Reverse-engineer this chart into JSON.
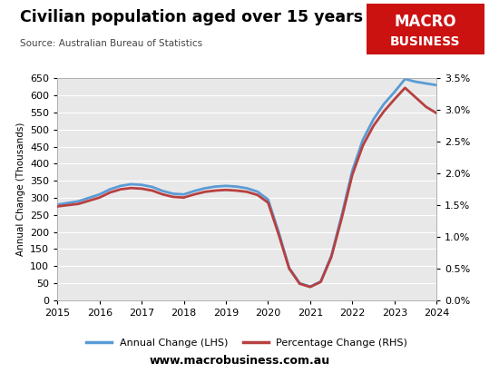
{
  "title": "Civilian population aged over 15 years",
  "source": "Source: Australian Bureau of Statistics",
  "website": "www.macrobusiness.com.au",
  "plot_bg_color": "#e8e8e8",
  "fig_bg_color": "#ffffff",
  "lhs_color": "#5b9bd5",
  "rhs_color": "#b84040",
  "lhs_label": "Annual Change (LHS)",
  "rhs_label": "Percentage Change (RHS)",
  "ylabel_lhs": "Annual Change (Thousands)",
  "ylim_lhs": [
    0,
    650
  ],
  "ylim_rhs": [
    0.0,
    3.5
  ],
  "yticks_lhs": [
    0,
    50,
    100,
    150,
    200,
    250,
    300,
    350,
    400,
    450,
    500,
    550,
    600,
    650
  ],
  "yticks_rhs": [
    0.0,
    0.5,
    1.0,
    1.5,
    2.0,
    2.5,
    3.0,
    3.5
  ],
  "x": [
    2015.0,
    2015.25,
    2015.5,
    2015.75,
    2016.0,
    2016.25,
    2016.5,
    2016.75,
    2017.0,
    2017.25,
    2017.5,
    2017.75,
    2018.0,
    2018.25,
    2018.5,
    2018.75,
    2019.0,
    2019.25,
    2019.5,
    2019.75,
    2020.0,
    2020.25,
    2020.5,
    2020.75,
    2021.0,
    2021.25,
    2021.5,
    2021.75,
    2022.0,
    2022.25,
    2022.5,
    2022.75,
    2023.0,
    2023.25,
    2023.5,
    2023.75,
    2024.0
  ],
  "annual_change": [
    280,
    285,
    290,
    300,
    310,
    325,
    335,
    340,
    338,
    332,
    320,
    312,
    310,
    320,
    328,
    333,
    335,
    333,
    328,
    318,
    295,
    200,
    95,
    50,
    40,
    55,
    130,
    250,
    380,
    470,
    530,
    575,
    610,
    648,
    640,
    635,
    630
  ],
  "pct_change": [
    1.48,
    1.5,
    1.52,
    1.57,
    1.62,
    1.7,
    1.75,
    1.77,
    1.76,
    1.73,
    1.67,
    1.63,
    1.62,
    1.67,
    1.71,
    1.73,
    1.74,
    1.73,
    1.71,
    1.66,
    1.54,
    1.04,
    0.5,
    0.26,
    0.21,
    0.29,
    0.68,
    1.3,
    1.98,
    2.44,
    2.75,
    2.98,
    3.17,
    3.35,
    3.2,
    3.05,
    2.95
  ],
  "xlim": [
    2015.0,
    2024.0
  ],
  "xticks": [
    2015,
    2016,
    2017,
    2018,
    2019,
    2020,
    2021,
    2022,
    2023,
    2024
  ],
  "logo_color": "#cc1111",
  "logo_text_line1": "MACRO",
  "logo_text_line2": "BUSINESS"
}
